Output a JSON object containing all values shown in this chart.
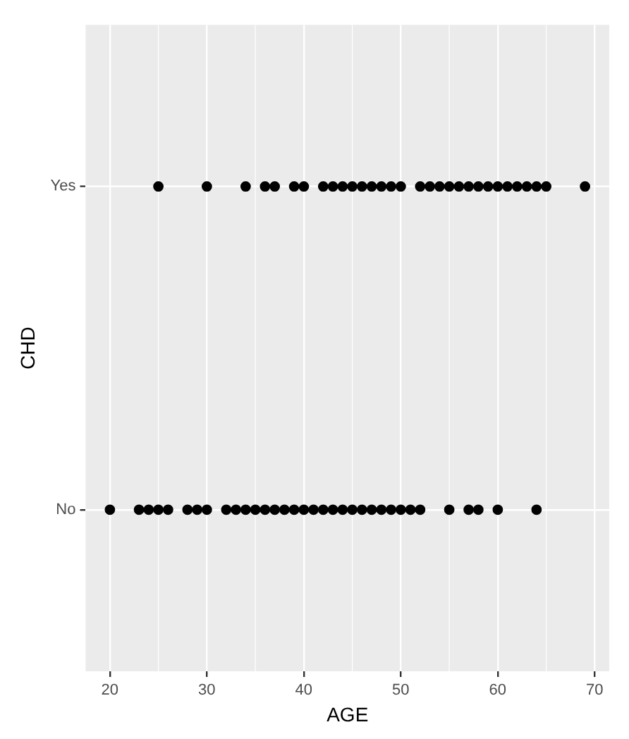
{
  "chart_data": {
    "type": "scatter",
    "orientation": "horizontal",
    "xlabel": "AGE",
    "ylabel": "CHD",
    "categories": [
      "Yes",
      "No"
    ],
    "xlim": [
      17.5,
      71.5
    ],
    "xticks": [
      20,
      30,
      40,
      50,
      60,
      70
    ],
    "grid": true,
    "legend": false,
    "marker": "circle",
    "series": [
      {
        "color": "#000000",
        "x": [
          "Yes",
          "Yes",
          "Yes",
          "Yes",
          "Yes",
          "Yes",
          "Yes",
          "Yes",
          "Yes",
          "Yes",
          "Yes",
          "Yes",
          "Yes",
          "Yes",
          "Yes",
          "Yes",
          "Yes",
          "Yes",
          "Yes",
          "Yes",
          "Yes",
          "Yes",
          "Yes",
          "Yes",
          "Yes",
          "Yes",
          "Yes",
          "Yes",
          "Yes",
          "Yes",
          "Yes"
        ],
        "values": [
          25,
          30,
          34,
          36,
          37,
          39,
          40,
          42,
          43,
          44,
          45,
          46,
          47,
          48,
          49,
          50,
          52,
          53,
          54,
          55,
          56,
          57,
          58,
          59,
          60,
          61,
          62,
          63,
          64,
          65,
          69
        ]
      },
      {
        "color": "#000000",
        "x": [
          "No",
          "No",
          "No",
          "No",
          "No",
          "No",
          "No",
          "No",
          "No",
          "No",
          "No",
          "No",
          "No",
          "No",
          "No",
          "No",
          "No",
          "No",
          "No",
          "No",
          "No",
          "No",
          "No",
          "No",
          "No",
          "No",
          "No",
          "No",
          "No",
          "No",
          "No",
          "No",
          "No",
          "No"
        ],
        "values": [
          20,
          23,
          24,
          25,
          26,
          28,
          29,
          30,
          32,
          33,
          34,
          35,
          36,
          37,
          38,
          39,
          40,
          41,
          42,
          43,
          44,
          45,
          46,
          47,
          48,
          49,
          50,
          51,
          52,
          55,
          57,
          58,
          60,
          64
        ]
      }
    ]
  }
}
